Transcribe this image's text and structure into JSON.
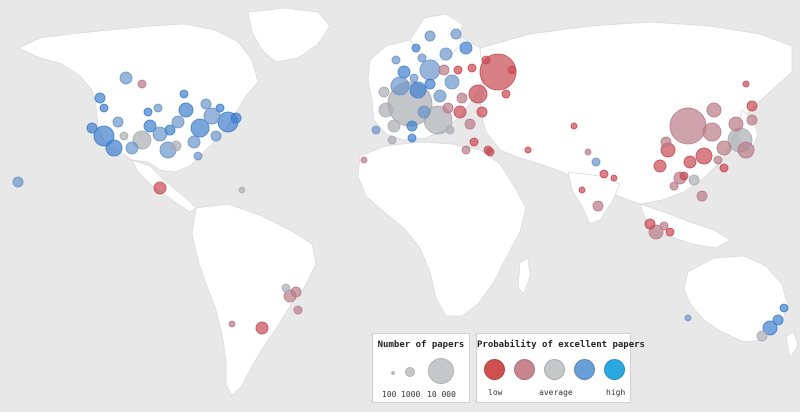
{
  "legend_size": {
    "title": "Number of papers",
    "labels": [
      "100",
      "1000",
      "10 000"
    ]
  },
  "legend_prob": {
    "title": "Probability of excellent papers",
    "labels": [
      "low",
      "average",
      "high"
    ],
    "colors": [
      "#d05050",
      "#c9858f",
      "#c5c7c9",
      "#6a9ed8",
      "#2aa8e0"
    ]
  },
  "colors": {
    "ocean": "#e8e8e8",
    "land": "#ffffff",
    "land_border": "#d8d8d8"
  }
}
